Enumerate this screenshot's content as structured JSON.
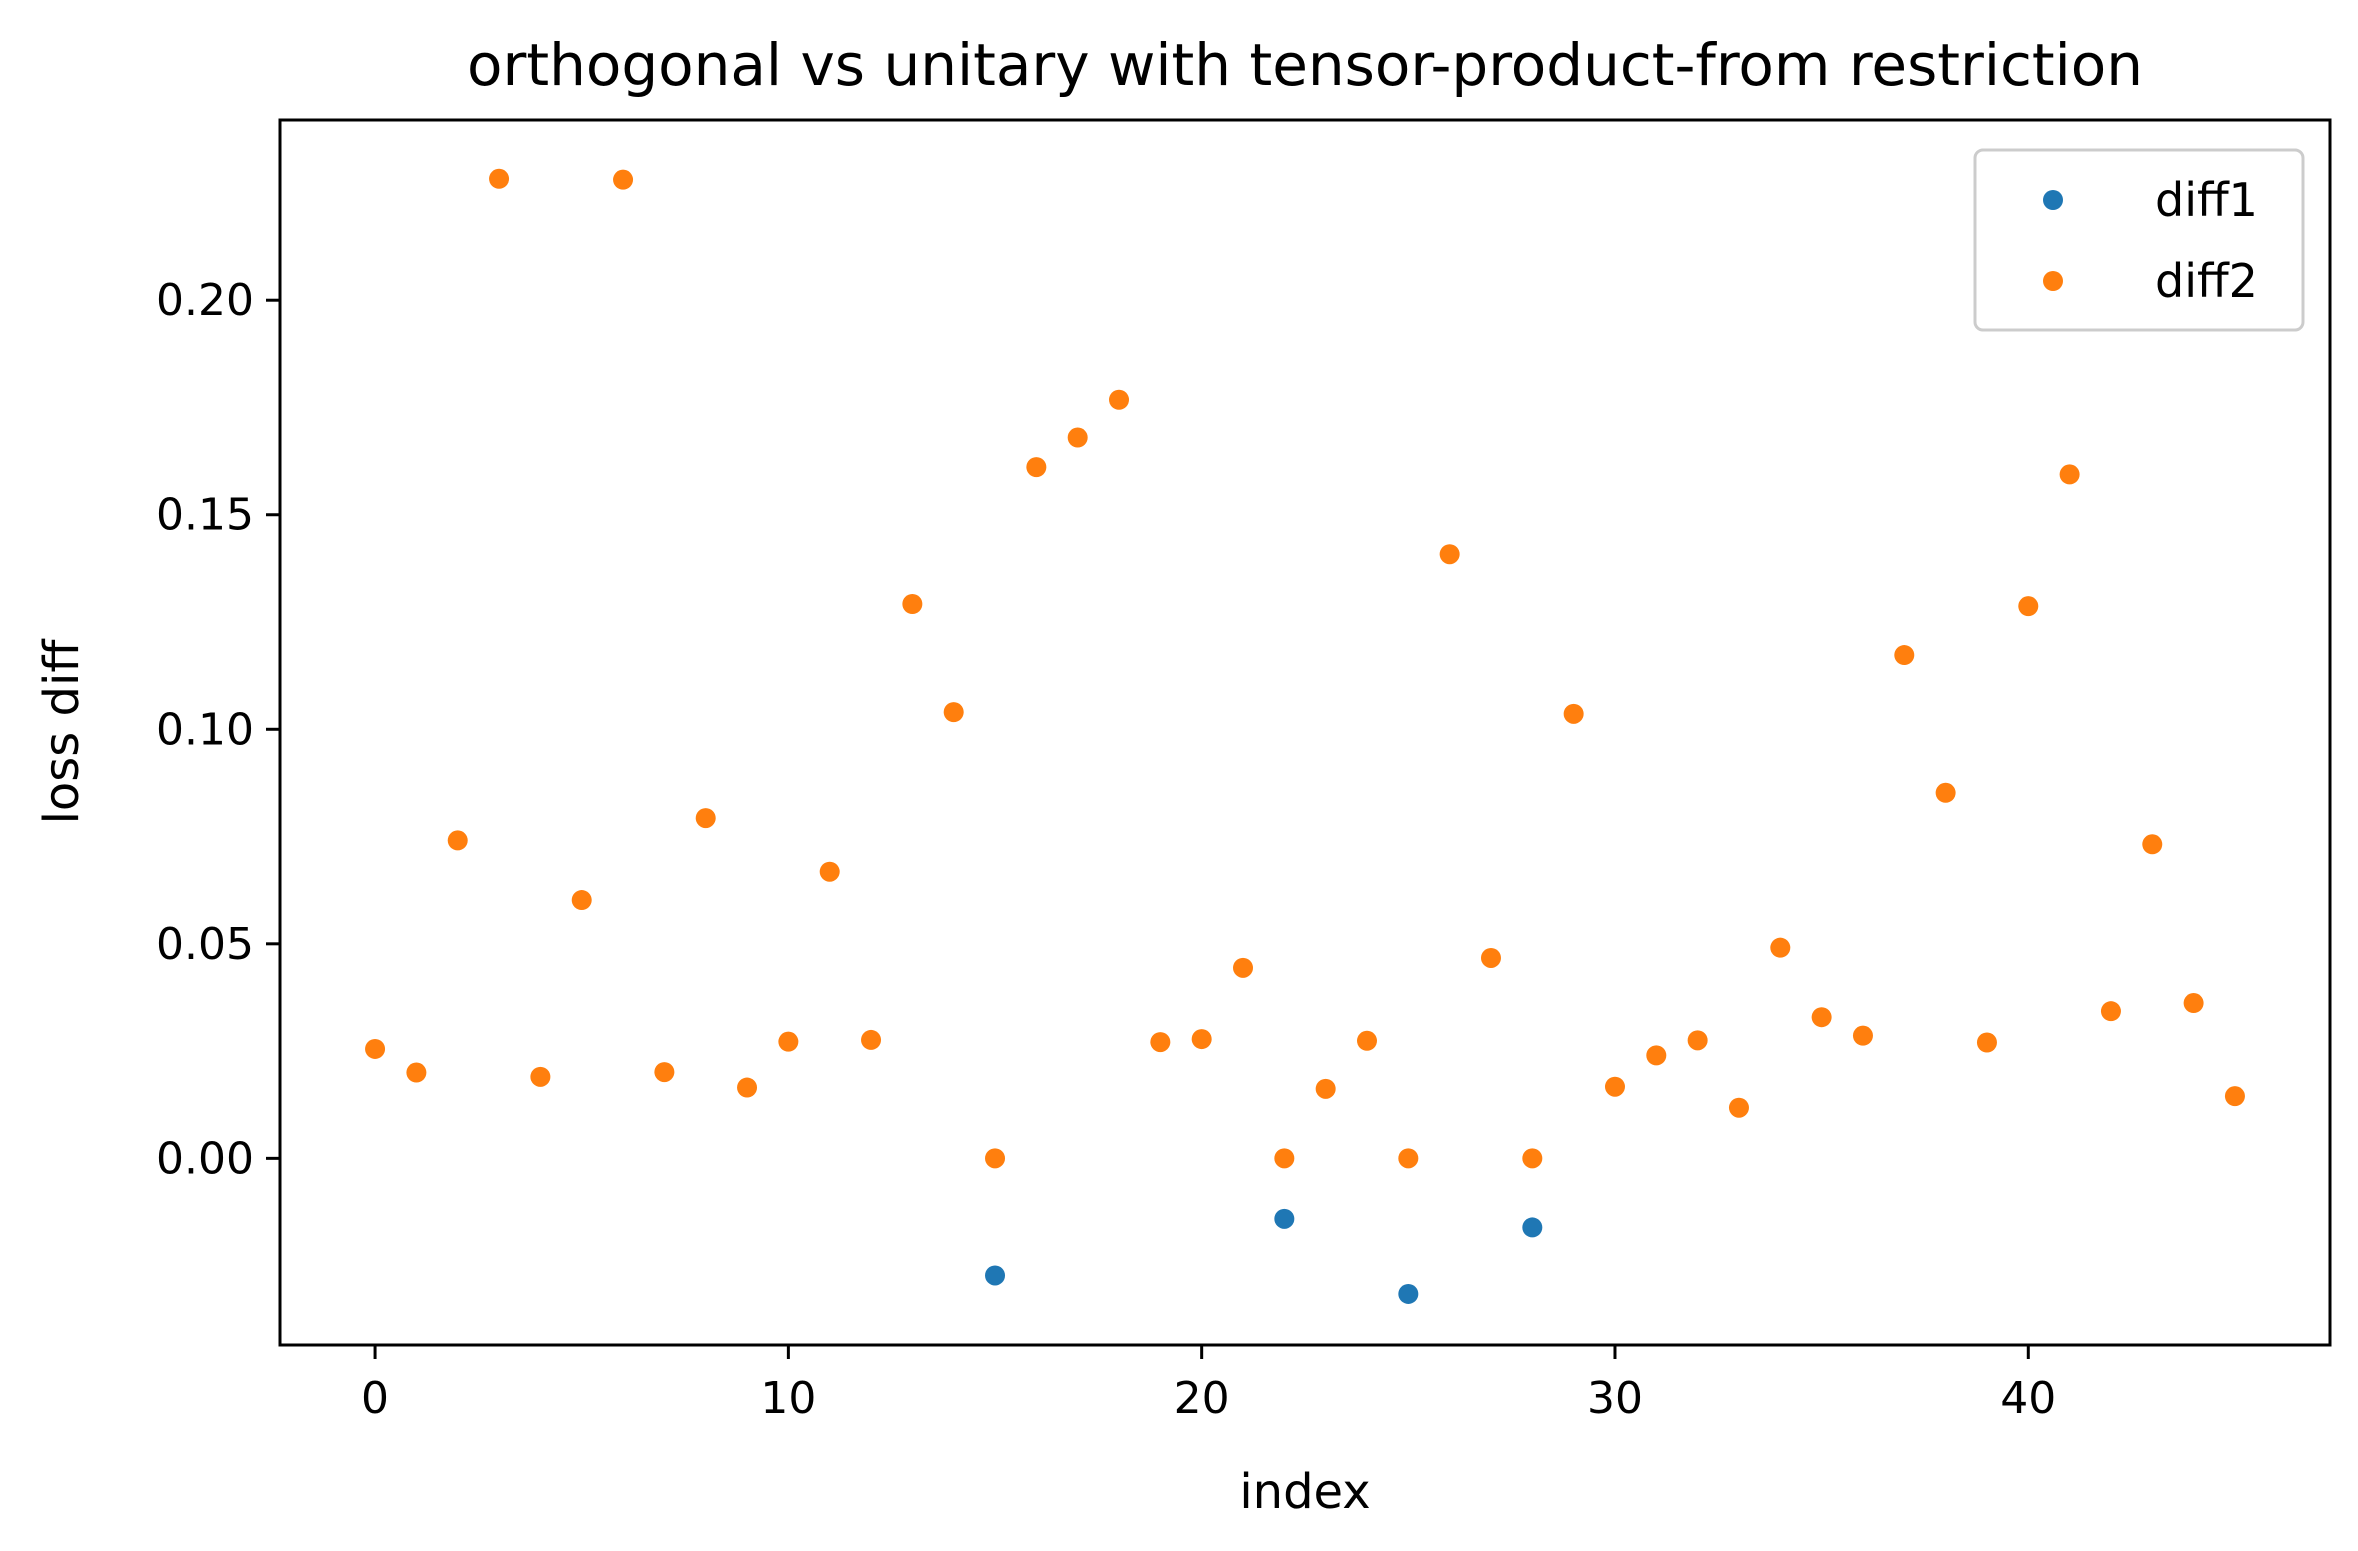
{
  "chart_data": {
    "type": "scatter",
    "title": "orthogonal vs unitary with tensor-product-from restriction",
    "xlabel": "index",
    "ylabel": "loss diff",
    "xlim": [
      -2.3,
      47.3
    ],
    "ylim": [
      -0.0435,
      0.242
    ],
    "xticks": [
      0,
      10,
      20,
      30,
      40
    ],
    "xtick_labels": [
      "0",
      "10",
      "20",
      "30",
      "40"
    ],
    "yticks": [
      0.0,
      0.05,
      0.1,
      0.15,
      0.2
    ],
    "ytick_labels": [
      "0.00",
      "0.05",
      "0.10",
      "0.15",
      "0.20"
    ],
    "grid": false,
    "legend_position": "top-right",
    "series": [
      {
        "name": "diff1",
        "color": "#1f77b4",
        "x": [
          15,
          22,
          25,
          28
        ],
        "y": [
          -0.0273,
          -0.0141,
          -0.0316,
          -0.0161
        ]
      },
      {
        "name": "diff2",
        "color": "#ff7f0e",
        "x": [
          0,
          1,
          2,
          3,
          4,
          5,
          6,
          7,
          8,
          9,
          10,
          11,
          12,
          13,
          14,
          15,
          16,
          17,
          18,
          19,
          20,
          21,
          22,
          23,
          24,
          25,
          26,
          27,
          28,
          29,
          30,
          31,
          32,
          33,
          34,
          35,
          36,
          37,
          38,
          39,
          40,
          41,
          42,
          43,
          44,
          45
        ],
        "y": [
          0.0255,
          0.02,
          0.0741,
          0.2283,
          0.019,
          0.0602,
          0.2281,
          0.0201,
          0.0793,
          0.0165,
          0.0272,
          0.0668,
          0.0276,
          0.1292,
          0.104,
          0.0,
          0.1611,
          0.168,
          0.1768,
          0.0271,
          0.0278,
          0.0444,
          0.0,
          0.0162,
          0.0274,
          0.0,
          0.1408,
          0.0467,
          0.0,
          0.1036,
          0.0167,
          0.024,
          0.0275,
          0.0118,
          0.0491,
          0.0329,
          0.0286,
          0.1173,
          0.0852,
          0.027,
          0.1287,
          0.1594,
          0.0343,
          0.0732,
          0.0362,
          0.0145
        ]
      }
    ]
  }
}
